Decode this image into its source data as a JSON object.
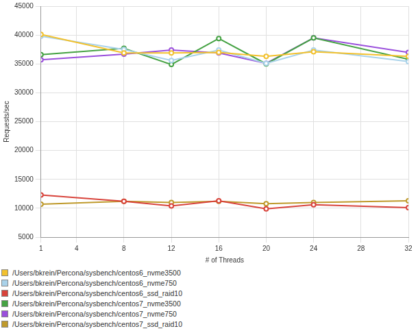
{
  "chart_data": {
    "type": "line",
    "x_label": "# of Threads",
    "y_label": "Requests/sec",
    "x": [
      1,
      8,
      12,
      16,
      20,
      24,
      32
    ],
    "xlim": [
      1,
      32
    ],
    "xticks": [
      1,
      4,
      8,
      12,
      16,
      20,
      24,
      28,
      32
    ],
    "ylim": [
      5000,
      45000
    ],
    "yticks": [
      5000,
      10000,
      15000,
      20000,
      25000,
      30000,
      35000,
      40000,
      45000
    ],
    "grid": true,
    "legend": "bottom",
    "marker": "circle",
    "series": [
      {
        "name": "/Users/bkrein/Percona/sysbench/centos6_nvme3500",
        "color": "#f2c12e",
        "values": [
          40100,
          36900,
          36900,
          37000,
          36300,
          37100,
          36300
        ]
      },
      {
        "name": "/Users/bkrein/Percona/sysbench/centos6_nvme750",
        "color": "#a9d2ea",
        "values": [
          39800,
          37500,
          35600,
          37400,
          35100,
          37400,
          35400
        ]
      },
      {
        "name": "/Users/bkrein/Percona/sysbench/centos6_ssd_raid10",
        "color": "#d8433b",
        "values": [
          12300,
          11200,
          10400,
          11300,
          9900,
          10600,
          10100
        ]
      },
      {
        "name": "/Users/bkrein/Percona/sysbench/centos7_nvme3500",
        "color": "#45a243",
        "values": [
          36600,
          37700,
          34900,
          39400,
          35000,
          39500,
          35800
        ]
      },
      {
        "name": "/Users/bkrein/Percona/sysbench/centos7_nvme750",
        "color": "#9a4fdc",
        "values": [
          35700,
          36700,
          37400,
          36900,
          35100,
          39500,
          37000
        ]
      },
      {
        "name": "/Users/bkrein/Percona/sysbench/centos7_ssd_raid10",
        "color": "#bf9a2c",
        "values": [
          10700,
          11200,
          11000,
          11200,
          10800,
          11000,
          11300
        ]
      }
    ]
  }
}
